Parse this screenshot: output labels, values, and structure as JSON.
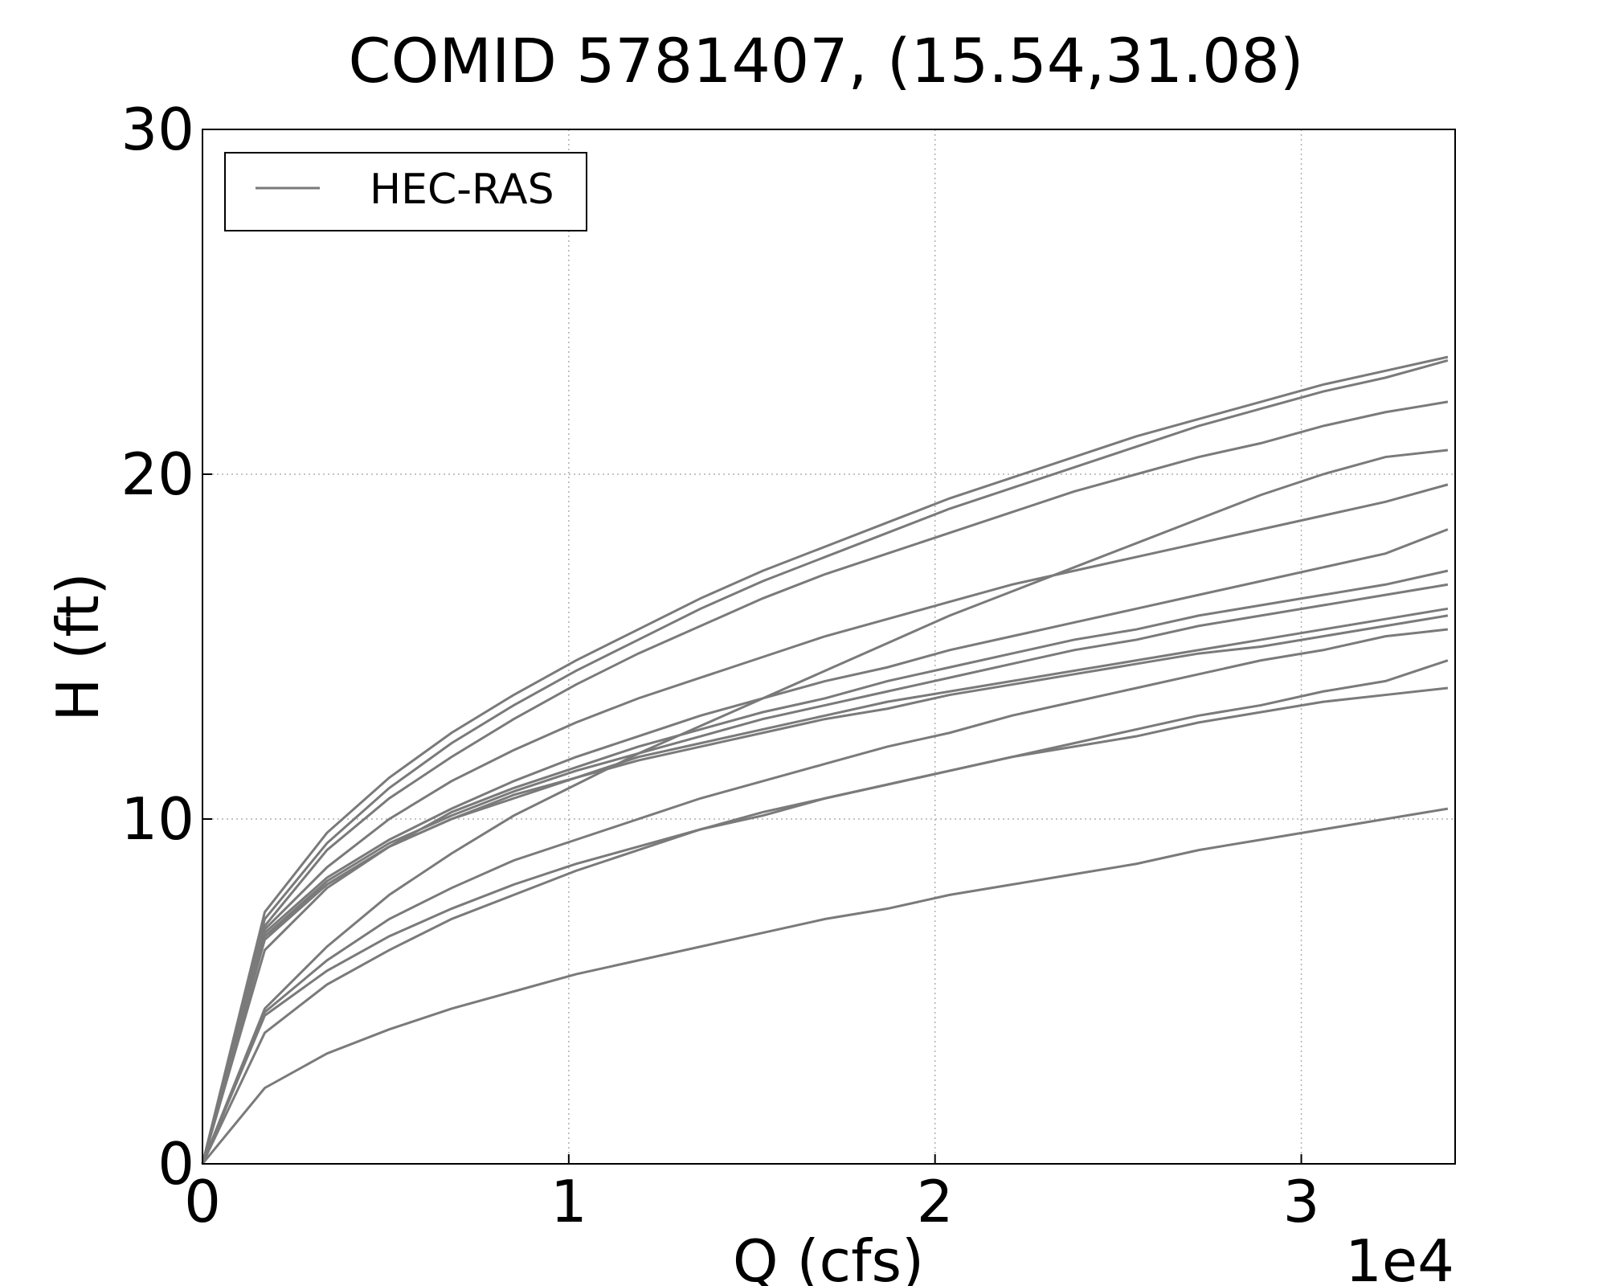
{
  "chart_data": {
    "type": "line",
    "title": "COMID 5781407, (15.54,31.08)",
    "xlabel": "Q (cfs)",
    "ylabel": "H (ft)",
    "x_offset_label": "1e4",
    "xlim": [
      0,
      3.42
    ],
    "ylim": [
      0,
      30
    ],
    "x_ticks": [
      "0",
      "1",
      "2",
      "3"
    ],
    "y_ticks": [
      "0",
      "10",
      "20",
      "30"
    ],
    "grid": true,
    "legend": {
      "position": "top-left",
      "entries": [
        "HEC-RAS"
      ]
    },
    "x": [
      0,
      0.17,
      0.34,
      0.51,
      0.68,
      0.85,
      1.02,
      1.19,
      1.36,
      1.53,
      1.7,
      1.87,
      2.04,
      2.21,
      2.38,
      2.55,
      2.72,
      2.89,
      3.06,
      3.23,
      3.4
    ],
    "series": [
      {
        "name": "HEC-RAS",
        "values": [
          0,
          7.3,
          9.6,
          11.2,
          12.5,
          13.6,
          14.6,
          15.5,
          16.4,
          17.2,
          17.9,
          18.6,
          19.3,
          19.9,
          20.5,
          21.1,
          21.6,
          22.1,
          22.6,
          23.0,
          23.4
        ]
      },
      {
        "name": "HEC-RAS",
        "values": [
          0,
          7.1,
          9.3,
          10.9,
          12.2,
          13.3,
          14.3,
          15.2,
          16.1,
          16.9,
          17.6,
          18.3,
          19.0,
          19.6,
          20.2,
          20.8,
          21.4,
          21.9,
          22.4,
          22.8,
          23.3
        ]
      },
      {
        "name": "HEC-RAS",
        "values": [
          0,
          6.9,
          9.1,
          10.6,
          11.8,
          12.9,
          13.9,
          14.8,
          15.6,
          16.4,
          17.1,
          17.7,
          18.3,
          18.9,
          19.5,
          20.0,
          20.5,
          20.9,
          21.4,
          21.8,
          22.1
        ]
      },
      {
        "name": "HEC-RAS",
        "values": [
          0,
          4.5,
          6.3,
          7.8,
          9.0,
          10.1,
          11.0,
          11.9,
          12.7,
          13.5,
          14.3,
          15.1,
          15.9,
          16.6,
          17.3,
          18.0,
          18.7,
          19.4,
          20.0,
          20.5,
          20.7
        ]
      },
      {
        "name": "HEC-RAS",
        "values": [
          0,
          6.8,
          8.6,
          10.0,
          11.1,
          12.0,
          12.8,
          13.5,
          14.1,
          14.7,
          15.3,
          15.8,
          16.3,
          16.8,
          17.2,
          17.6,
          18.0,
          18.4,
          18.8,
          19.2,
          19.7
        ]
      },
      {
        "name": "HEC-RAS",
        "values": [
          0,
          6.7,
          8.3,
          9.4,
          10.3,
          11.1,
          11.8,
          12.4,
          13.0,
          13.5,
          14.0,
          14.4,
          14.9,
          15.3,
          15.7,
          16.1,
          16.5,
          16.9,
          17.3,
          17.7,
          18.4
        ]
      },
      {
        "name": "HEC-RAS",
        "values": [
          0,
          6.5,
          8.1,
          9.2,
          10.2,
          10.9,
          11.5,
          12.1,
          12.6,
          13.1,
          13.5,
          14.0,
          14.4,
          14.8,
          15.2,
          15.5,
          15.9,
          16.2,
          16.5,
          16.8,
          17.2
        ]
      },
      {
        "name": "HEC-RAS",
        "values": [
          0,
          6.6,
          8.2,
          9.3,
          10.1,
          10.8,
          11.4,
          11.9,
          12.4,
          12.9,
          13.3,
          13.7,
          14.1,
          14.5,
          14.9,
          15.2,
          15.6,
          15.9,
          16.2,
          16.5,
          16.8
        ]
      },
      {
        "name": "HEC-RAS",
        "values": [
          0,
          6.6,
          8.1,
          9.2,
          10.0,
          10.7,
          11.2,
          11.8,
          12.2,
          12.6,
          13.0,
          13.4,
          13.7,
          14.0,
          14.3,
          14.6,
          14.9,
          15.2,
          15.5,
          15.8,
          16.1
        ]
      },
      {
        "name": "HEC-RAS",
        "values": [
          0,
          6.2,
          8.0,
          9.2,
          10.0,
          10.6,
          11.2,
          11.7,
          12.1,
          12.5,
          12.9,
          13.2,
          13.6,
          13.9,
          14.2,
          14.5,
          14.8,
          15.0,
          15.3,
          15.6,
          15.9
        ]
      },
      {
        "name": "HEC-RAS",
        "values": [
          0,
          4.4,
          5.9,
          7.1,
          8.0,
          8.8,
          9.4,
          10.0,
          10.6,
          11.1,
          11.6,
          12.1,
          12.5,
          13.0,
          13.4,
          13.8,
          14.2,
          14.6,
          14.9,
          15.3,
          15.5
        ]
      },
      {
        "name": "HEC-RAS",
        "values": [
          0,
          4.3,
          5.6,
          6.6,
          7.4,
          8.1,
          8.7,
          9.2,
          9.7,
          10.1,
          10.6,
          11.0,
          11.4,
          11.8,
          12.2,
          12.6,
          13.0,
          13.3,
          13.7,
          14.0,
          14.6
        ]
      },
      {
        "name": "HEC-RAS",
        "values": [
          0,
          3.8,
          5.2,
          6.2,
          7.1,
          7.8,
          8.5,
          9.1,
          9.7,
          10.2,
          10.6,
          11.0,
          11.4,
          11.8,
          12.1,
          12.4,
          12.8,
          13.1,
          13.4,
          13.6,
          13.8
        ]
      },
      {
        "name": "HEC-RAS",
        "values": [
          0,
          2.2,
          3.2,
          3.9,
          4.5,
          5.0,
          5.5,
          5.9,
          6.3,
          6.7,
          7.1,
          7.4,
          7.8,
          8.1,
          8.4,
          8.7,
          9.1,
          9.4,
          9.7,
          10.0,
          10.3
        ]
      }
    ],
    "colors": {
      "series": "#7a7a7a",
      "grid": "#b0b0b0",
      "axes": "#000000"
    }
  }
}
